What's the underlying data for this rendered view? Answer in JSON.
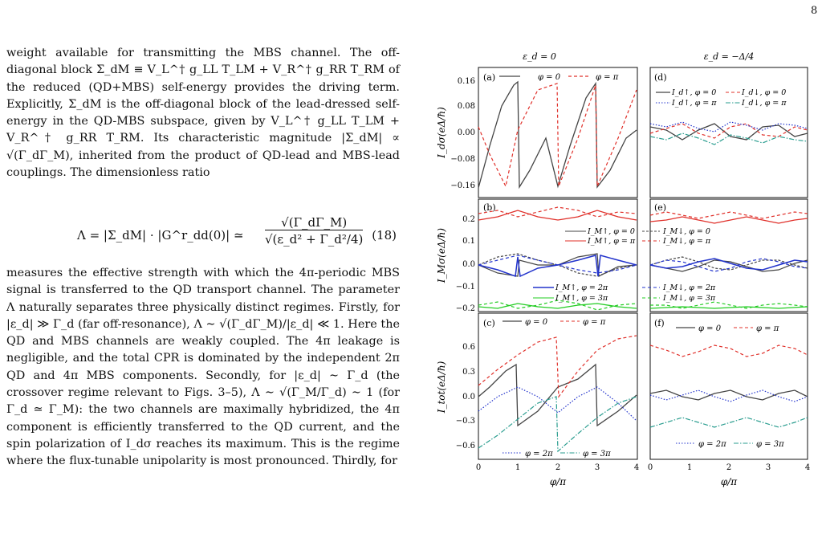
{
  "page_number": "8",
  "body": {
    "para1": "weight available for transmitting the MBS channel. The off-diagonal block Σ_dM ≡ V_L^† g_LL T_LM + V_R^† g_RR T_RM of the reduced (QD+MBS) self-energy provides the driving term. Explicitly, Σ_dM is the off-diagonal block of the lead-dressed self-energy in the QD-MBS subspace, given by V_L^† g_LL T_LM + V_R^† g_RR T_RM. Its characteristic magnitude |Σ_dM| ∝ √(Γ_dΓ_M), inherited from the product of QD-lead and MBS-lead couplings. The dimensionless ratio",
    "eq_lhs": "Λ = |Σ_dM| · |G^r_dd(0)| ≃",
    "eq_num": "√(Γ_dΓ_M)",
    "eq_den": "√(ε_d² + Γ_d²/4)",
    "eq_tag": "(18)",
    "para2": "measures the effective strength with which the 4π-periodic MBS signal is transferred to the QD transport channel. The parameter Λ naturally separates three physically distinct regimes. Firstly, for |ε_d| ≫ Γ_d (far off-resonance), Λ ∼ √(Γ_dΓ_M)/|ε_d| ≪ 1. Here the QD and MBS channels are weakly coupled. The 4π leakage is negligible, and the total CPR is dominated by the independent 2π QD and 4π MBS components. Secondly, for |ε_d| ∼ Γ_d (the crossover regime relevant to Figs. 3–5), Λ ∼ √(Γ_M/Γ_d) ∼ 1 (for Γ_d ≃ Γ_M): the two channels are maximally hybridized, the 4π component is efficiently transferred to the QD current, and the spin polarization of I_dσ reaches its maximum. This is the regime where the flux-tunable unipolarity is most pronounced. Thirdly, for"
  },
  "figure": {
    "col_titles": [
      "ε_d = 0",
      "ε_d = −Δ/4"
    ],
    "xlabel": "φ/π",
    "xticks": [
      "0",
      "1",
      "2",
      "3",
      "4"
    ],
    "panels": {
      "a": {
        "tag": "(a)",
        "ylabel": "I_dσ(eΔ/ħ)",
        "yticks": [
          "0.16",
          "0.08",
          "0.00",
          "−0.08",
          "−0.16"
        ],
        "legend": [
          "φ = 0",
          "φ = π"
        ]
      },
      "b": {
        "tag": "(b)",
        "ylabel": "I_Mσ(eΔ/ħ)",
        "yticks": [
          "0.2",
          "0.1",
          "0.0",
          "−0.1",
          "−0.2"
        ],
        "legend": [
          "I_M↑, φ = 0",
          "I_M↓, φ = 0",
          "I_M↑, φ = π",
          "I_M↓, φ = π",
          "I_M↑, φ = 2π",
          "I_M↓, φ = 2π",
          "I_M↑, φ = 3π",
          "I_M↓, φ = 3π"
        ]
      },
      "c": {
        "tag": "(c)",
        "ylabel": "I_tot(eΔ/ħ)",
        "yticks": [
          "0.6",
          "0.3",
          "0.0",
          "−0.3",
          "−0.6"
        ],
        "legend": [
          "φ = 0",
          "φ = π",
          "φ = 2π",
          "φ = 3π"
        ]
      },
      "d": {
        "tag": "(d)",
        "legend": [
          "I_d↑, φ = 0",
          "I_d↓, φ = 0",
          "I_d↑, φ = π",
          "I_d↓, φ = π"
        ]
      },
      "e": {
        "tag": "(e)"
      },
      "f": {
        "tag": "(f)",
        "legend": [
          "φ = 0",
          "φ = π",
          "φ = 2π",
          "φ = 3π"
        ]
      }
    },
    "colors": {
      "dark": "#444444",
      "red": "#e0302a",
      "blue": "#2233cc",
      "teal": "#2a9d8f",
      "green": "#22cc22"
    }
  },
  "chart_data": [
    {
      "type": "line",
      "panel": "a",
      "x": [
        0,
        1,
        2,
        3,
        4
      ],
      "series": [
        {
          "name": "φ = 0",
          "values": [
            -0.16,
            0.15,
            -0.16,
            0.15,
            -0.16
          ]
        },
        {
          "name": "φ = π",
          "values": [
            0.14,
            -0.16,
            0.15,
            -0.16,
            0.14
          ]
        }
      ],
      "xlabel": "φ/π",
      "ylabel": "I_dσ(eΔ/ħ)",
      "ylim": [
        -0.18,
        0.18
      ]
    },
    {
      "type": "line",
      "panel": "d",
      "x": [
        0,
        1,
        2,
        3,
        4
      ],
      "series": [
        {
          "name": "I_d↑, φ = 0",
          "values": [
            0.03,
            -0.03,
            0.03,
            -0.03,
            0.03
          ]
        },
        {
          "name": "I_d↓, φ = 0",
          "values": [
            0.0,
            0.04,
            0.0,
            0.04,
            0.0
          ]
        },
        {
          "name": "I_d↑, φ = π",
          "values": [
            0.03,
            0.04,
            0.03,
            0.04,
            0.03
          ]
        },
        {
          "name": "I_d↓, φ = π",
          "values": [
            -0.03,
            -0.01,
            -0.03,
            -0.01,
            -0.03
          ]
        }
      ],
      "xlabel": "φ/π",
      "ylim": [
        -0.18,
        0.18
      ]
    },
    {
      "type": "line",
      "panel": "c",
      "x": [
        0,
        1,
        2,
        3,
        4
      ],
      "series": [
        {
          "name": "φ = 0",
          "values": [
            -0.05,
            0.41,
            -0.05,
            0.41,
            -0.05
          ]
        },
        {
          "name": "φ = π",
          "values": [
            0.1,
            0.65,
            0.1,
            0.65,
            0.1
          ]
        },
        {
          "name": "φ = 2π",
          "values": [
            -0.2,
            0.25,
            0.0,
            0.25,
            -0.2
          ]
        },
        {
          "name": "φ = 3π",
          "values": [
            -0.66,
            0.0,
            -0.66,
            0.0,
            -0.66
          ]
        }
      ],
      "xlabel": "φ/π",
      "ylabel": "I_tot(eΔ/ħ)",
      "ylim": [
        -0.75,
        0.75
      ]
    }
  ]
}
